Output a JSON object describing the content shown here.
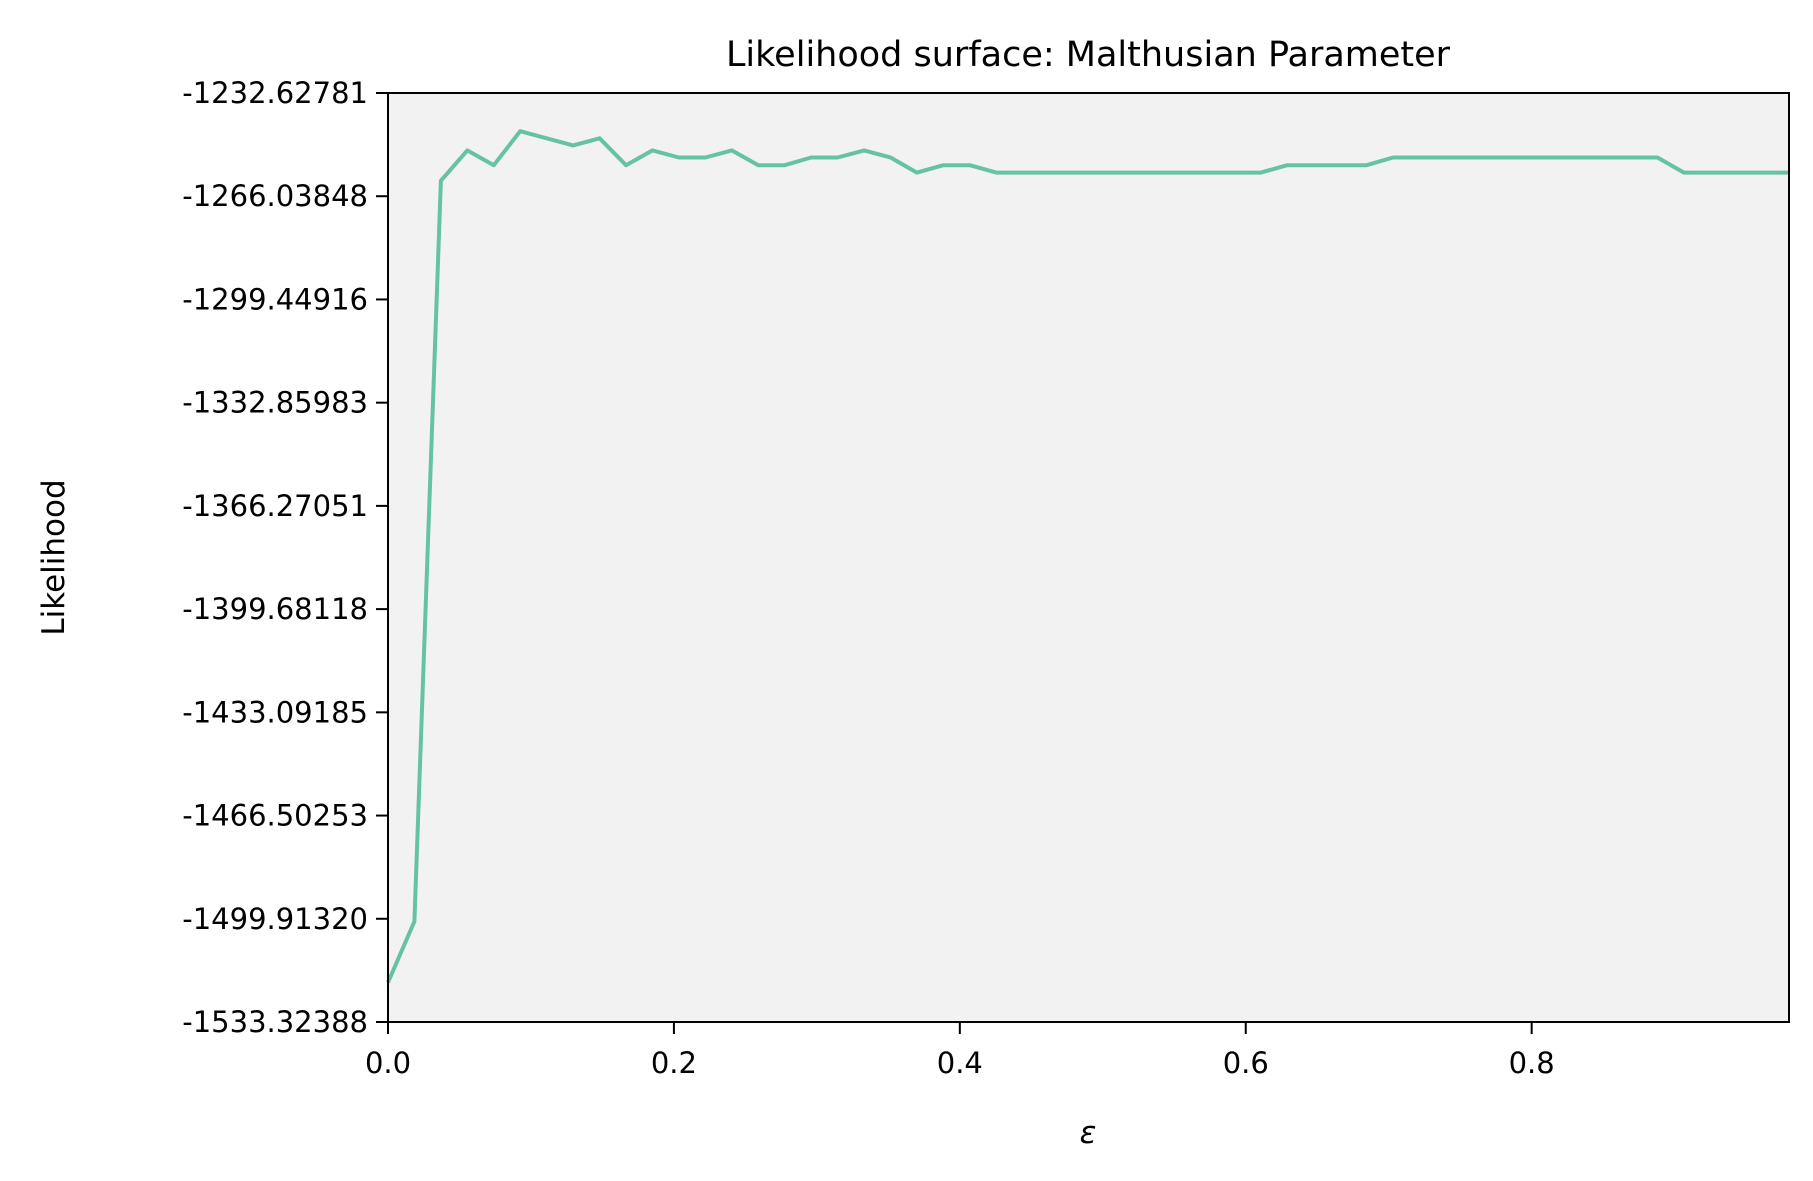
{
  "chart_data": {
    "type": "line",
    "title": "Likelihood surface: Malthusian Parameter",
    "xlabel": "ε",
    "ylabel": "Likelihood",
    "xlim": [
      0,
      0.98
    ],
    "ylim": [
      -1533.32388,
      -1232.62781
    ],
    "xticks": [
      0.0,
      0.2,
      0.4,
      0.6,
      0.8
    ],
    "xtick_labels": [
      "0.0",
      "0.2",
      "0.4",
      "0.6",
      "0.8"
    ],
    "yticks": [
      -1533.32388,
      -1499.9132,
      -1466.50253,
      -1433.09185,
      -1399.68118,
      -1366.27051,
      -1332.85983,
      -1299.44916,
      -1266.03848,
      -1232.62781
    ],
    "ytick_labels": [
      "-1533.32388",
      "-1499.91320",
      "-1466.50253",
      "-1433.09185",
      "-1399.68118",
      "-1366.27051",
      "-1332.85983",
      "-1299.44916",
      "-1266.03848",
      "-1232.62781"
    ],
    "grid": false,
    "legend": "none",
    "colors": {
      "line": "#66c2a5",
      "plot_background": "#f2f2f2",
      "axes": "#000000"
    },
    "series": [
      {
        "x": [
          0.0,
          0.0185,
          0.037,
          0.0555,
          0.074,
          0.0925,
          0.111,
          0.1295,
          0.148,
          0.1665,
          0.185,
          0.2035,
          0.222,
          0.2405,
          0.259,
          0.2775,
          0.296,
          0.3145,
          0.333,
          0.3515,
          0.37,
          0.3885,
          0.407,
          0.4255,
          0.444,
          0.4625,
          0.481,
          0.4995,
          0.518,
          0.5365,
          0.555,
          0.5735,
          0.592,
          0.6105,
          0.629,
          0.6475,
          0.666,
          0.6845,
          0.703,
          0.7215,
          0.74,
          0.7585,
          0.777,
          0.7955,
          0.814,
          0.8325,
          0.851,
          0.8695,
          0.888,
          0.9065,
          0.925,
          0.9435,
          0.962,
          0.98
        ],
        "values": [
          -1520.5,
          -1500.8,
          -1261.0,
          -1251.2,
          -1256.0,
          -1245.0,
          -1247.3,
          -1249.6,
          -1247.3,
          -1256.0,
          -1251.2,
          -1253.5,
          -1253.5,
          -1251.2,
          -1256.0,
          -1256.0,
          -1253.5,
          -1253.5,
          -1251.2,
          -1253.5,
          -1258.4,
          -1256.0,
          -1256.0,
          -1258.4,
          -1258.4,
          -1258.4,
          -1258.4,
          -1258.4,
          -1258.4,
          -1258.4,
          -1258.4,
          -1258.4,
          -1258.4,
          -1258.4,
          -1256.0,
          -1256.0,
          -1256.0,
          -1256.0,
          -1253.5,
          -1253.5,
          -1253.5,
          -1253.5,
          -1253.5,
          -1253.5,
          -1253.5,
          -1253.5,
          -1253.5,
          -1253.5,
          -1253.5,
          -1258.4,
          -1258.4,
          -1258.4,
          -1258.4,
          -1258.4
        ]
      }
    ]
  }
}
